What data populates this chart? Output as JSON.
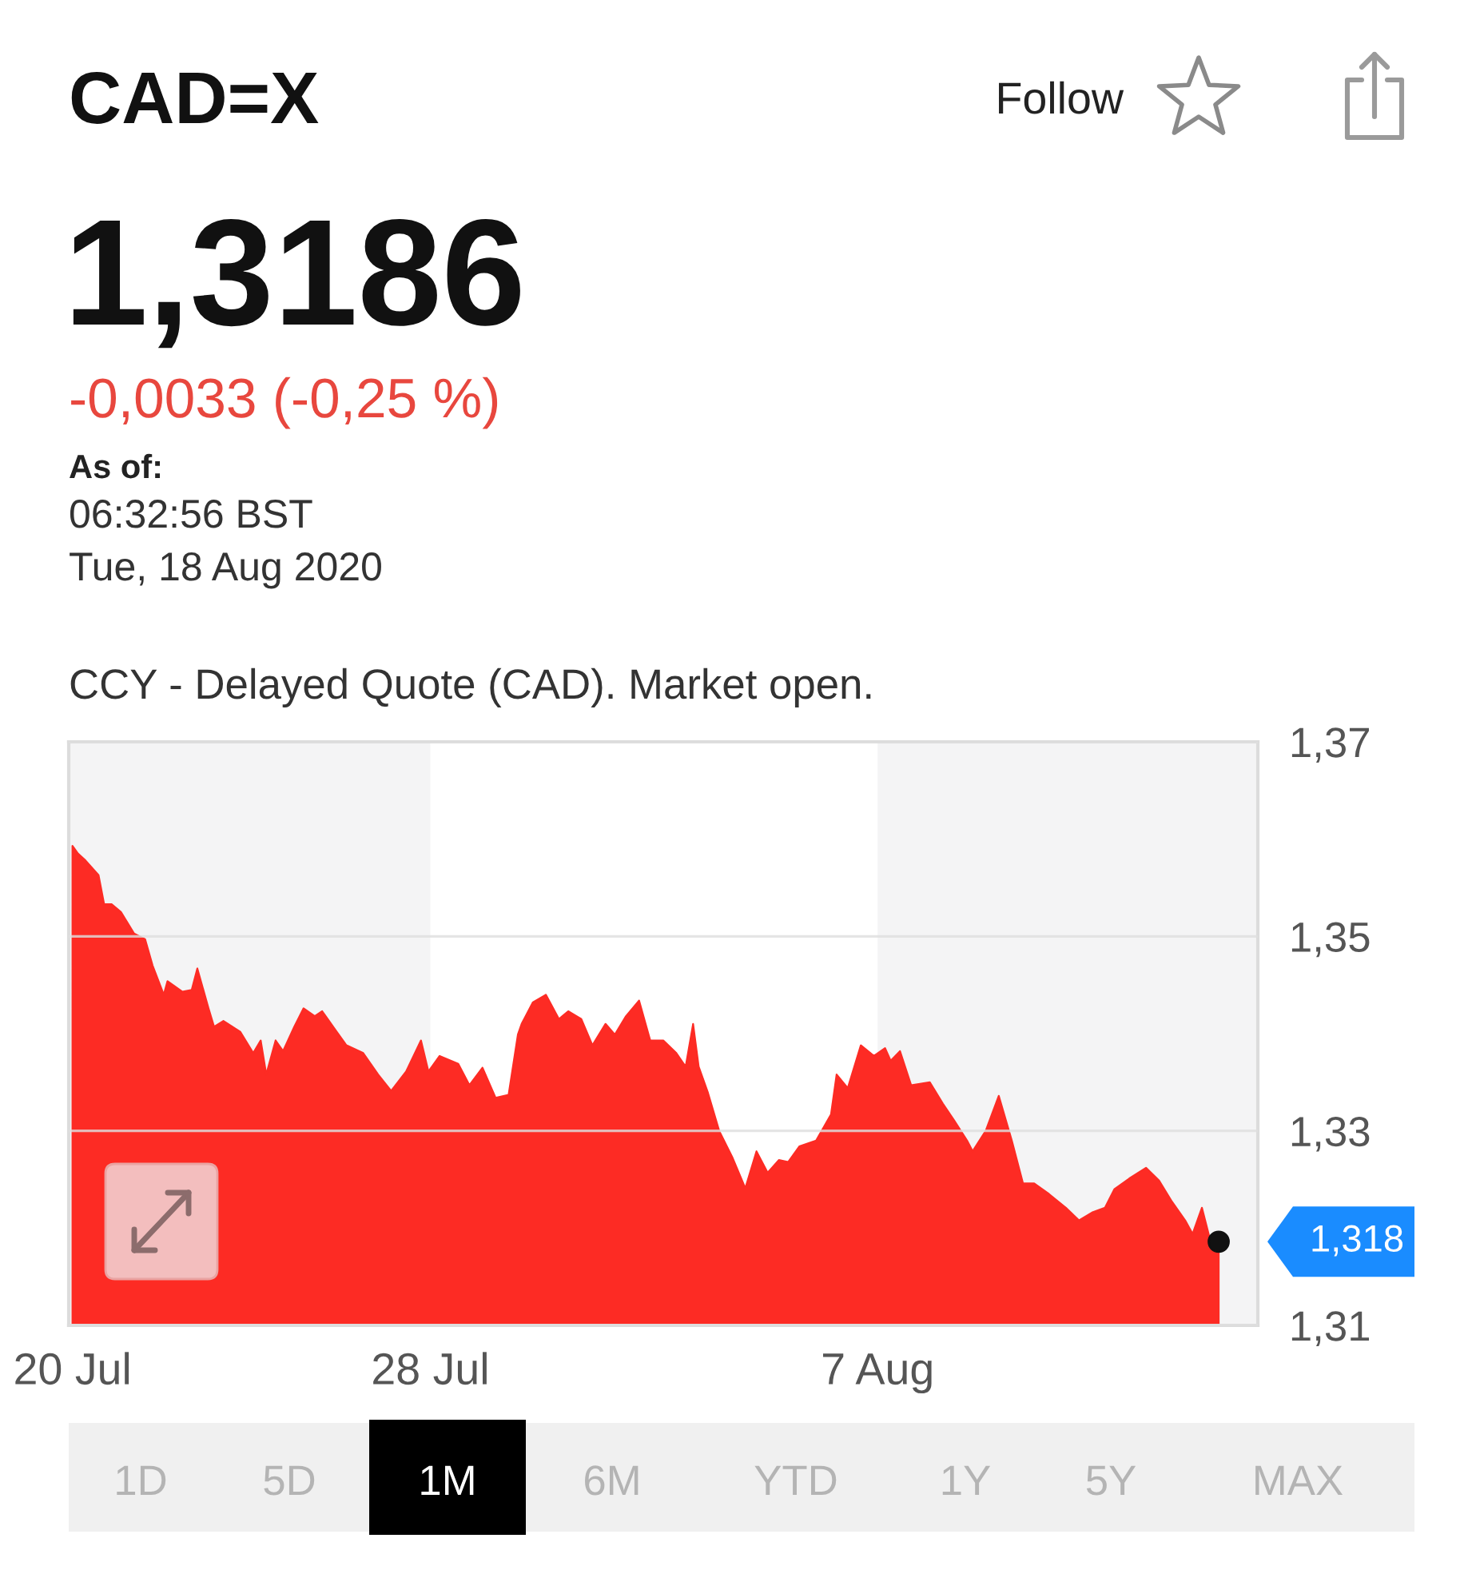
{
  "chart_data": {
    "type": "area",
    "title": "CAD=X",
    "subtitle": "1,3186",
    "annotations": [
      "-0,0033 (-0,25 %)",
      "As of:",
      "06:32:56 BST",
      "Tue, 18 Aug 2020",
      "CCY - Delayed Quote (CAD). Market open.",
      "Follow",
      "1D",
      "5D",
      "1M",
      "6M",
      "YTD",
      "1Y",
      "5Y",
      "MAX",
      {
        "text": "1,318",
        "x": "2020-08-14T15:00",
        "y": 1.3186
      }
    ],
    "x": [
      "2020-07-20T00:00",
      "2020-07-20T03:00",
      "2020-07-20T07:00",
      "2020-07-20T14:00",
      "2020-07-20T17:00",
      "2020-07-20T21:00",
      "2020-07-21T02:00",
      "2020-07-21T09:00",
      "2020-07-21T15:00",
      "2020-07-21T19:00",
      "2020-07-22T01:00",
      "2020-07-22T03:00",
      "2020-07-22T11:00",
      "2020-07-22T16:00",
      "2020-07-22T19:00",
      "2020-07-23T01:00",
      "2020-07-23T04:00",
      "2020-07-23T09:00",
      "2020-07-23T18:00",
      "2020-07-24T01:00",
      "2020-07-24T05:00",
      "2020-07-24T08:00",
      "2020-07-24T13:00",
      "2020-07-24T17:00",
      "2020-07-24T23:00",
      "2020-07-25T04:00",
      "2020-07-25T10:00",
      "2020-07-25T14:00",
      "2020-07-25T21:00",
      "2020-07-26T03:00",
      "2020-07-26T12:00",
      "2020-07-26T20:00",
      "2020-07-27T03:00",
      "2020-07-27T11:00",
      "2020-07-27T19:00",
      "2020-07-27T23:00",
      "2020-07-28T05:00",
      "2020-07-28T15:00",
      "2020-07-28T21:00",
      "2020-07-29T04:00",
      "2020-07-29T11:00",
      "2020-07-29T18:00",
      "2020-07-29T23:00",
      "2020-07-30T01:00",
      "2020-07-30T07:00",
      "2020-07-30T14:00",
      "2020-07-30T21:00",
      "2020-07-31T02:00",
      "2020-07-31T09:00",
      "2020-07-31T15:00",
      "2020-07-31T22:00",
      "2020-08-01T03:00",
      "2020-08-01T09:00",
      "2020-08-01T16:00",
      "2020-08-01T22:00",
      "2020-08-02T05:00",
      "2020-08-02T12:00",
      "2020-08-02T17:00",
      "2020-08-02T21:00",
      "2020-08-03T00:00",
      "2020-08-03T05:00",
      "2020-08-03T11:00",
      "2020-08-03T18:00",
      "2020-08-04T01:00",
      "2020-08-04T07:00",
      "2020-08-04T13:00",
      "2020-08-04T19:00",
      "2020-08-05T00:00",
      "2020-08-05T06:00",
      "2020-08-05T15:00",
      "2020-08-05T23:00",
      "2020-08-06T02:00",
      "2020-08-06T08:00",
      "2020-08-06T15:00",
      "2020-08-06T22:00",
      "2020-08-07T04:00",
      "2020-08-07T07:00",
      "2020-08-07T12:00",
      "2020-08-07T18:00",
      "2020-08-08T04:00",
      "2020-08-08T11:00",
      "2020-08-08T17:00",
      "2020-08-09T00:00",
      "2020-08-09T03:00",
      "2020-08-09T10:00",
      "2020-08-09T17:00",
      "2020-08-10T00:00",
      "2020-08-10T06:00",
      "2020-08-10T12:00",
      "2020-08-10T20:00",
      "2020-08-11T05:00",
      "2020-08-11T12:00",
      "2020-08-11T19:00",
      "2020-08-12T02:00",
      "2020-08-12T07:00",
      "2020-08-12T15:00",
      "2020-08-13T00:00",
      "2020-08-13T07:00",
      "2020-08-13T14:00",
      "2020-08-13T21:00",
      "2020-08-14T01:00",
      "2020-08-14T06:00",
      "2020-08-14T10:00",
      "2020-08-14T15:00"
    ],
    "values": [
      1.3593,
      1.3585,
      1.3578,
      1.3563,
      1.3533,
      1.3533,
      1.3525,
      1.3503,
      1.3497,
      1.347,
      1.344,
      1.3454,
      1.3443,
      1.3445,
      1.3467,
      1.3426,
      1.3407,
      1.3413,
      1.3402,
      1.338,
      1.3393,
      1.3358,
      1.3393,
      1.3382,
      1.3407,
      1.3426,
      1.3418,
      1.3423,
      1.3404,
      1.3388,
      1.338,
      1.3358,
      1.3341,
      1.3361,
      1.3393,
      1.3361,
      1.3377,
      1.3369,
      1.3347,
      1.3365,
      1.3334,
      1.3337,
      1.3399,
      1.341,
      1.3432,
      1.344,
      1.3415,
      1.3423,
      1.3415,
      1.3388,
      1.341,
      1.3399,
      1.3418,
      1.3434,
      1.3393,
      1.3393,
      1.338,
      1.3366,
      1.341,
      1.3366,
      1.3339,
      1.33,
      1.3273,
      1.3241,
      1.3279,
      1.3257,
      1.327,
      1.3268,
      1.3284,
      1.329,
      1.3317,
      1.3358,
      1.3344,
      1.3388,
      1.3377,
      1.3385,
      1.3372,
      1.3382,
      1.3347,
      1.335,
      1.3328,
      1.3311,
      1.329,
      1.3279,
      1.33,
      1.3336,
      1.329,
      1.3246,
      1.3246,
      1.3235,
      1.3221,
      1.3208,
      1.3216,
      1.3221,
      1.324,
      1.3251,
      1.3262,
      1.3249,
      1.3227,
      1.3208,
      1.3194,
      1.3221,
      1.3191,
      1.3186
    ],
    "color": "#fd2b24",
    "xlim": [
      "2020-07-19T22:00",
      "2020-08-15T12:00"
    ],
    "xticks": [
      {
        "value": "2020-07-20",
        "label": "20 Jul"
      },
      {
        "value": "2020-07-28",
        "label": "28 Jul"
      },
      {
        "value": "2020-08-07",
        "label": "7 Aug"
      }
    ],
    "ylim": [
      1.31,
      1.37
    ],
    "yticks": [
      {
        "value": 1.31,
        "label": "1,31"
      },
      {
        "value": 1.33,
        "label": "1,33"
      },
      {
        "value": 1.35,
        "label": "1,35"
      },
      {
        "value": 1.37,
        "label": "1,37"
      }
    ],
    "grid": "y",
    "bands": [
      {
        "axis": "x",
        "from": "2020-07-19T22:00",
        "to": "2020-07-28",
        "color": "#f4f4f5"
      },
      {
        "axis": "x",
        "from": "2020-08-07",
        "to": "2020-08-15T12:00",
        "color": "#f4f4f5"
      }
    ]
  }
}
